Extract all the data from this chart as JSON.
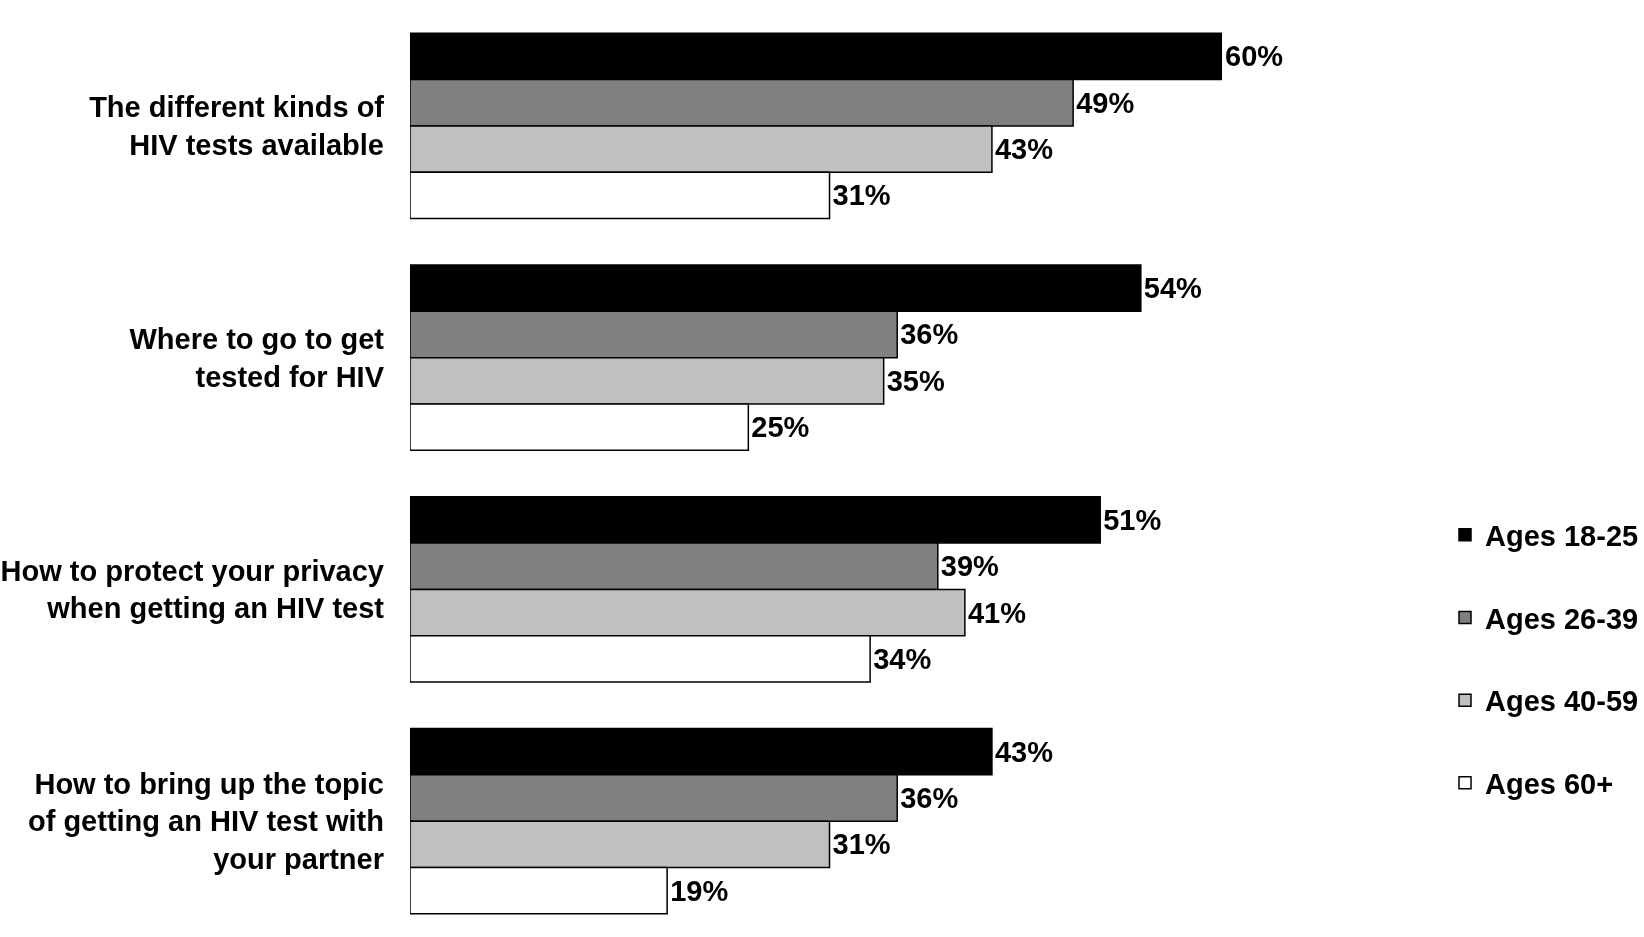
{
  "chart_data": {
    "type": "bar",
    "orientation": "horizontal",
    "categories": [
      "The different kinds of\nHIV tests available",
      "Where to go to get\ntested for HIV",
      "How to protect your privacy\nwhen getting an HIV test",
      "How to bring up the topic\nof getting an HIV test with\nyour partner"
    ],
    "series": [
      {
        "name": "Ages 18-25",
        "color": "#000000",
        "values": [
          60,
          54,
          51,
          43
        ],
        "value_labels": [
          "60%",
          "54%",
          "51%",
          "43%"
        ]
      },
      {
        "name": "Ages 26-39",
        "color": "#808080",
        "values": [
          49,
          36,
          39,
          36
        ],
        "value_labels": [
          "49%",
          "36%",
          "39%",
          "36%"
        ]
      },
      {
        "name": "Ages 40-59",
        "color": "#c0c0c0",
        "values": [
          43,
          35,
          41,
          31
        ],
        "value_labels": [
          "43%",
          "35%",
          "41%",
          "31%"
        ]
      },
      {
        "name": "Ages 60+",
        "color": "#ffffff",
        "values": [
          31,
          25,
          34,
          19
        ],
        "value_labels": [
          "31%",
          "25%",
          "34%",
          "19%"
        ]
      }
    ],
    "xlim": [
      0,
      60
    ],
    "tick_labels": "y",
    "legend": "right"
  }
}
